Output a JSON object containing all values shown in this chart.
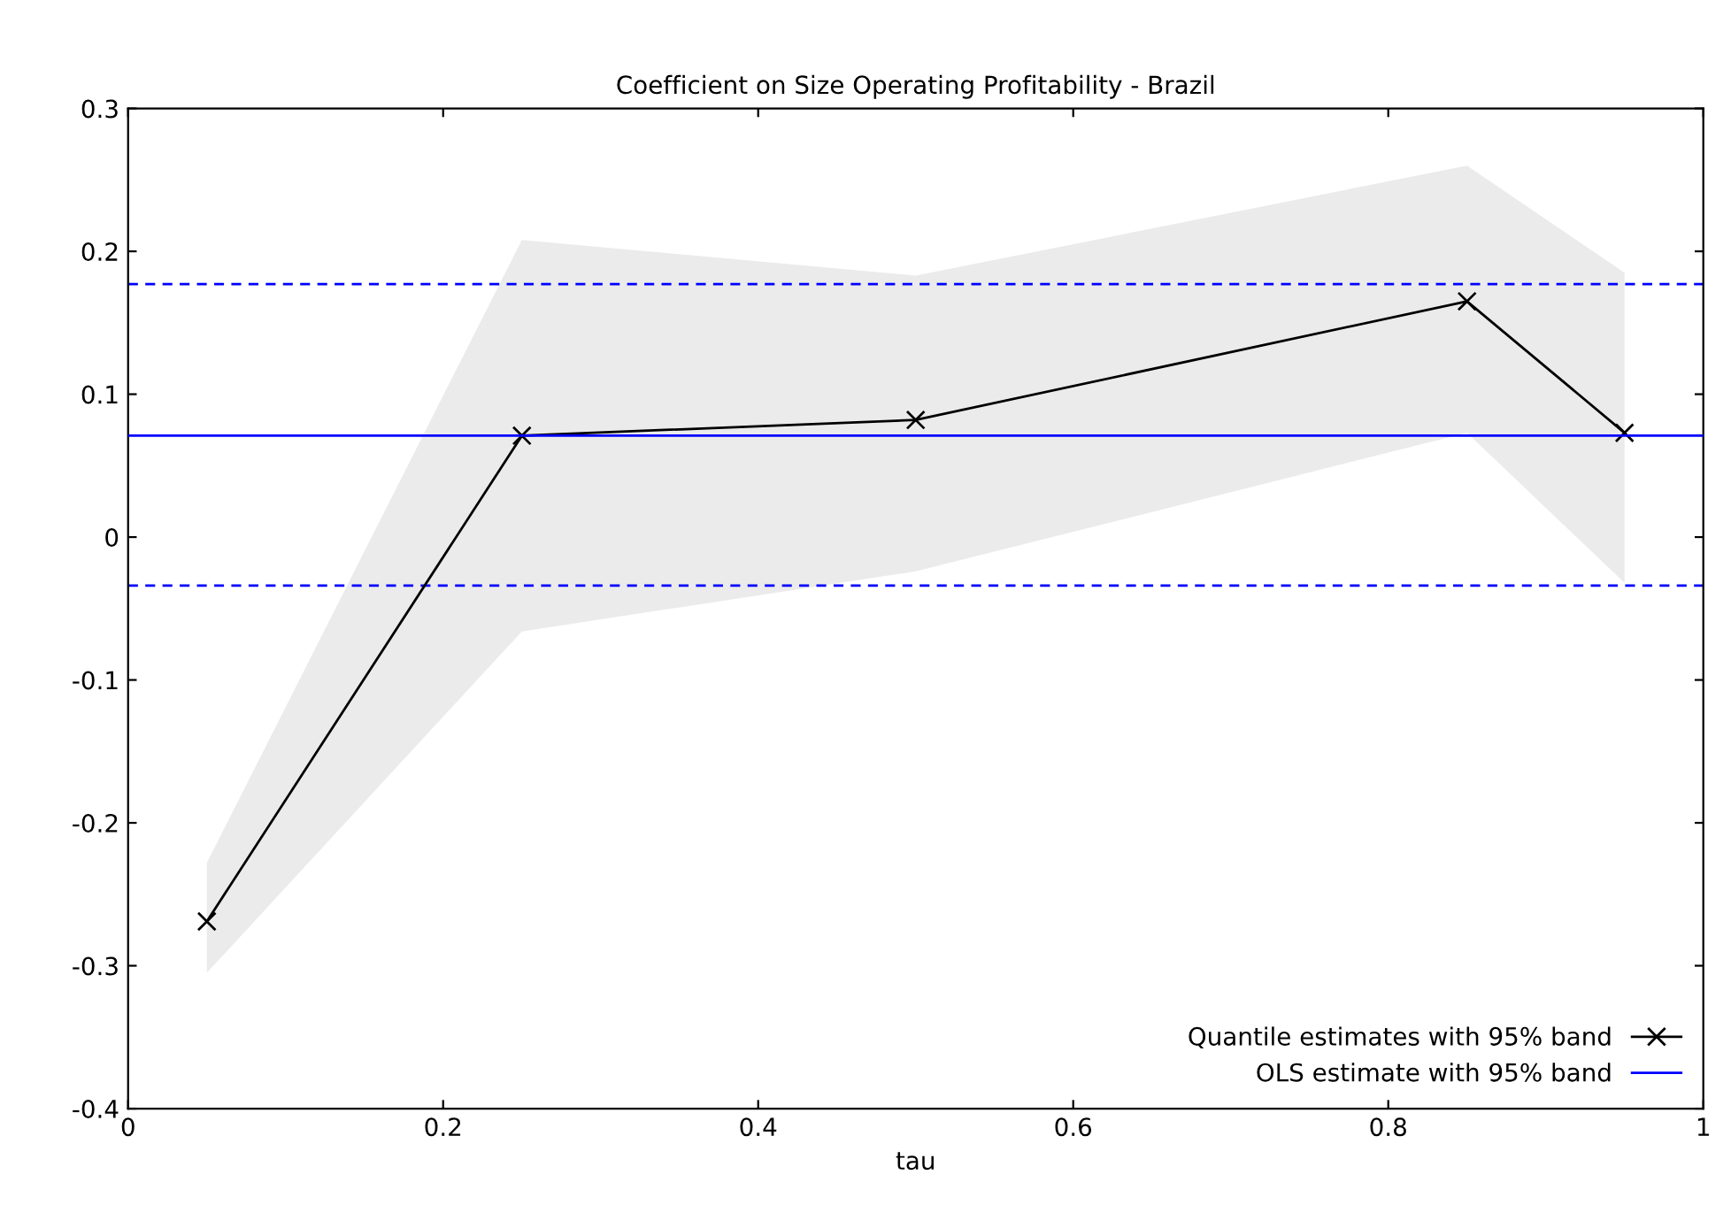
{
  "chart_data": {
    "type": "line",
    "title": "Coefficient on Size Operating Profitability - Brazil",
    "xlabel": "tau",
    "xlim": [
      0,
      1
    ],
    "xticks": [
      0,
      0.2,
      0.4,
      0.6,
      0.8,
      1
    ],
    "ylim": [
      -0.4,
      0.3
    ],
    "yticks": [
      -0.4,
      -0.3,
      -0.2,
      -0.1,
      0,
      0.1,
      0.2,
      0.3
    ],
    "grid": false,
    "legend": "bottom right",
    "series": [
      {
        "name": "Quantile estimates with 95% band",
        "color": "#000000",
        "marker": "cross",
        "x": [
          0.05,
          0.25,
          0.5,
          0.85,
          0.95
        ],
        "values": [
          -0.269,
          0.071,
          0.082,
          0.165,
          0.073
        ],
        "lower": [
          -0.305,
          -0.066,
          -0.024,
          0.073,
          -0.032
        ],
        "upper": [
          -0.228,
          0.208,
          0.183,
          0.26,
          0.185
        ]
      },
      {
        "name": "OLS estimate with 95% band",
        "color": "#0000ff",
        "x": [
          0,
          1
        ],
        "values": [
          0.071,
          0.071
        ]
      }
    ],
    "ref_lines": [
      {
        "axis": "y",
        "value": 0.177,
        "color": "#0000ff",
        "line_style": "dashed"
      },
      {
        "axis": "y",
        "value": -0.034,
        "color": "#0000ff",
        "line_style": "dashed"
      }
    ]
  }
}
